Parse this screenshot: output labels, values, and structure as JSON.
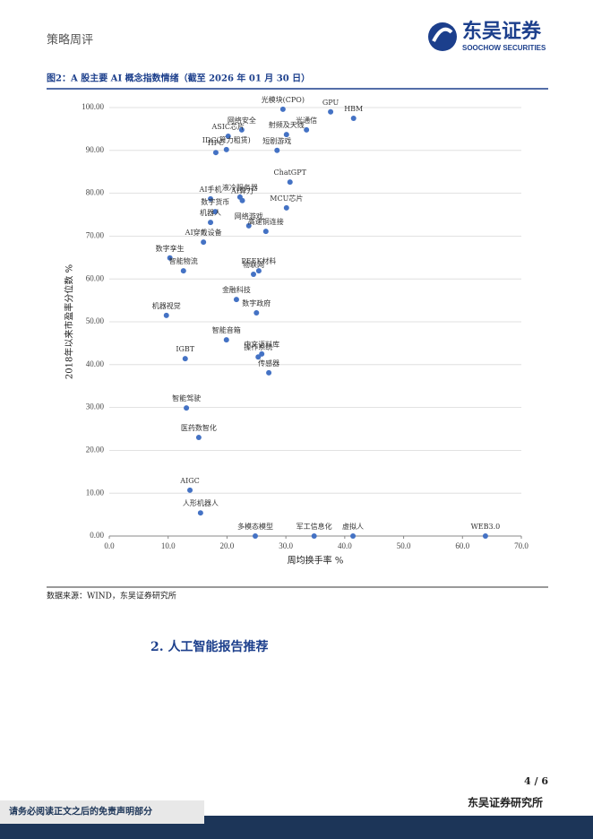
{
  "header": {
    "section": "策略周评",
    "logo_cn": "东吴证券",
    "logo_en": "SOOCHOW SECURITIES"
  },
  "figure_title": "图2：A 股主要 AI 概念指数情绪（截至 2026 年 01 月 30 日）",
  "chart_data": {
    "type": "scatter",
    "x_label": "周均换手率 %",
    "y_label": "2018年以来市盈率分位数 %",
    "color": "#4472c4",
    "point_labels": [
      "GPU",
      "HBM",
      "光模块(CPO)",
      "网络安全",
      "射频及天线",
      "光通信",
      "ASIC芯片",
      "IDC(算力租赁)",
      "HPC",
      "短剧游戏",
      "ChatGPT",
      "AI手机",
      "液冷服务器",
      "AI算力",
      "数字货币",
      "MCU芯片",
      "机器人",
      "网络游戏",
      "高速铜连接",
      "AI穿戴设备",
      "数字孪生",
      "智能物流",
      "PEEK材料",
      "物联网",
      "金融科技",
      "数字政府",
      "机器视觉",
      "智能音箱",
      "IGBT",
      "中文语料库",
      "操作系统",
      "传感器",
      "智能驾驶",
      "医药数智化",
      "AIGC",
      "人形机器人",
      "多模态模型",
      "军工信息化",
      "虚拟人",
      "WEB3.0"
    ],
    "x": [
      37.6,
      41.5,
      29.5,
      22.5,
      30.1,
      33.5,
      20.2,
      19.9,
      18.1,
      28.5,
      30.7,
      17.2,
      22.2,
      22.6,
      18.0,
      30.1,
      17.2,
      23.7,
      26.6,
      16.0,
      10.3,
      12.6,
      25.4,
      24.5,
      21.6,
      25.0,
      9.7,
      19.9,
      12.9,
      25.9,
      25.3,
      27.1,
      13.1,
      15.2,
      13.7,
      15.5,
      24.8,
      34.8,
      41.4,
      63.9
    ],
    "values": [
      99.0,
      97.5,
      99.6,
      94.8,
      93.7,
      94.8,
      93.3,
      90.2,
      89.5,
      90.0,
      82.6,
      78.7,
      79.1,
      78.3,
      75.7,
      76.6,
      73.2,
      72.4,
      71.1,
      68.6,
      64.9,
      61.9,
      61.9,
      61.1,
      55.2,
      52.1,
      51.5,
      45.8,
      41.4,
      42.5,
      41.8,
      38.1,
      29.9,
      23.0,
      10.7,
      5.4,
      0,
      0,
      0,
      0
    ],
    "xlim": [
      0,
      70
    ],
    "xticks": [
      {
        "value": 0,
        "label": "0.0"
      },
      {
        "value": 10,
        "label": "10.0"
      },
      {
        "value": 20,
        "label": "20.0"
      },
      {
        "value": 30,
        "label": "30.0"
      },
      {
        "value": 40,
        "label": "40.0"
      },
      {
        "value": 50,
        "label": "50.0"
      },
      {
        "value": 60,
        "label": "60.0"
      },
      {
        "value": 70,
        "label": "70.0"
      }
    ],
    "ylim": [
      0,
      100
    ],
    "yticks": [
      {
        "value": 0,
        "label": "0.00"
      },
      {
        "value": 10,
        "label": "10.00"
      },
      {
        "value": 20,
        "label": "20.00"
      },
      {
        "value": 30,
        "label": "30.00"
      },
      {
        "value": 40,
        "label": "40.00"
      },
      {
        "value": 50,
        "label": "50.00"
      },
      {
        "value": 60,
        "label": "60.00"
      },
      {
        "value": 70,
        "label": "70.00"
      },
      {
        "value": 80,
        "label": "80.00"
      },
      {
        "value": 90,
        "label": "90.00"
      },
      {
        "value": 100,
        "label": "100.00"
      }
    ],
    "grid": true
  },
  "source": "数据来源：WIND，东吴证券研究所",
  "section_heading": "2.  人工智能报告推荐",
  "page_number": "4 / 6",
  "footer": {
    "org": "东吴证券研究所",
    "disclaimer": "请务必阅读正文之后的免责声明部分"
  }
}
